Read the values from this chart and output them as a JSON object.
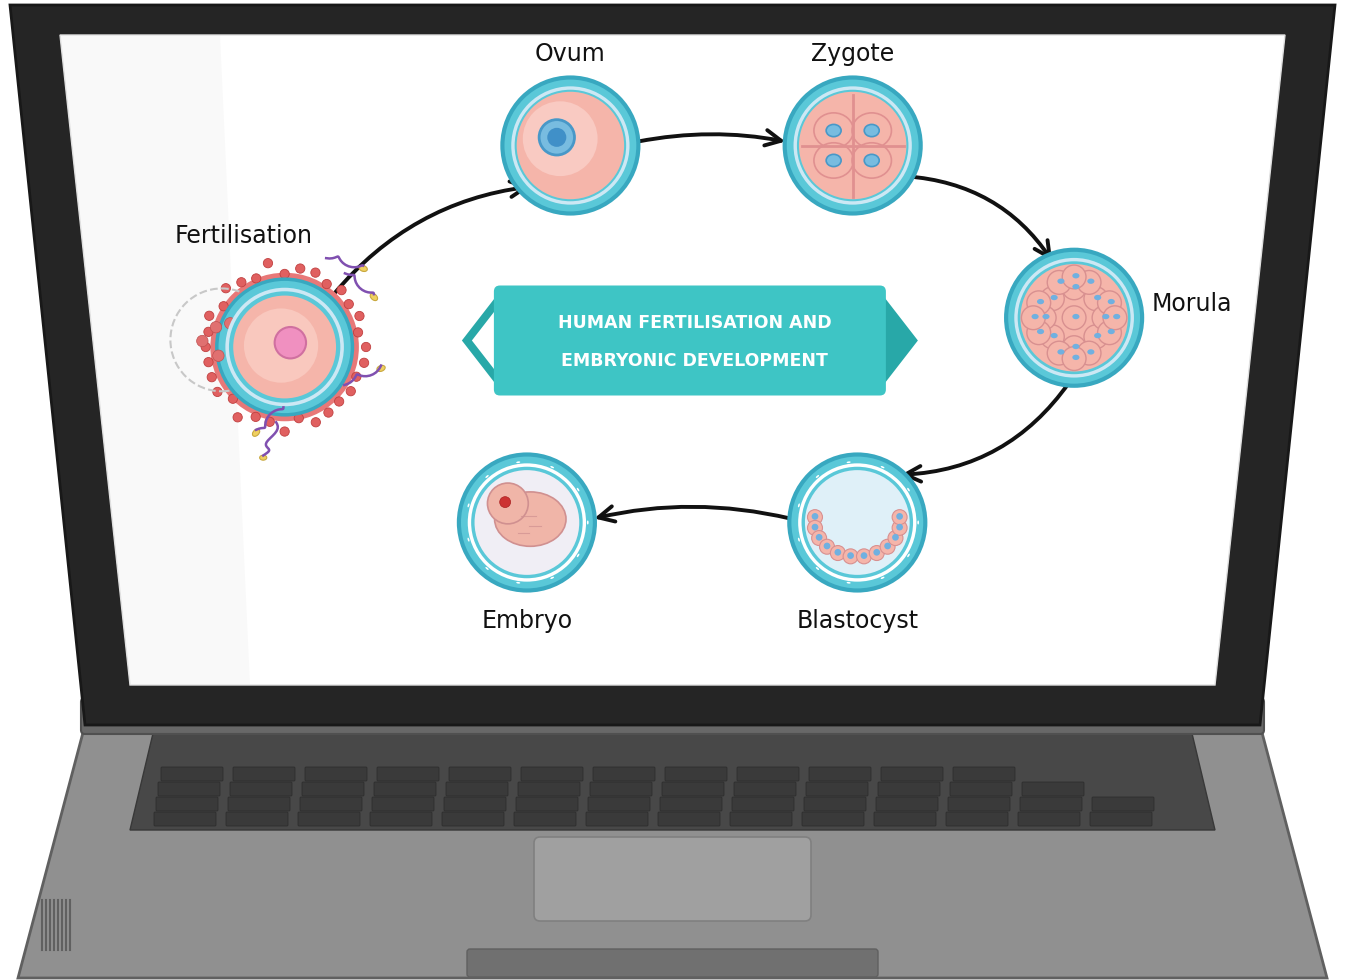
{
  "title_line1": "HUMAN FERTILISATION AND",
  "title_line2": "EMBRYONIC DEVELOPMENT",
  "title_color": "#ffffff",
  "title_bg": "#3ec5c5",
  "title_dark": "#28a8a8",
  "labels": {
    "ovum": "Ovum",
    "zygote": "Zygote",
    "morula": "Morula",
    "blastocyst": "Blastocyst",
    "embryo": "Embryo",
    "fertilisation": "Fertilisation"
  },
  "arrow_color": "#111111",
  "cell_teal_outer": "#5bc8d8",
  "cell_teal_inner": "#4ab8c8",
  "cell_pink": "#f5b0a8",
  "cell_blue_nuc": "#5a9fd4",
  "laptop_dark": "#282828",
  "laptop_mid": "#888888",
  "laptop_light": "#b0b0b0",
  "screen_white": "#ffffff",
  "keyboard_bg": "#484848",
  "key_color": "#3a3a3a"
}
